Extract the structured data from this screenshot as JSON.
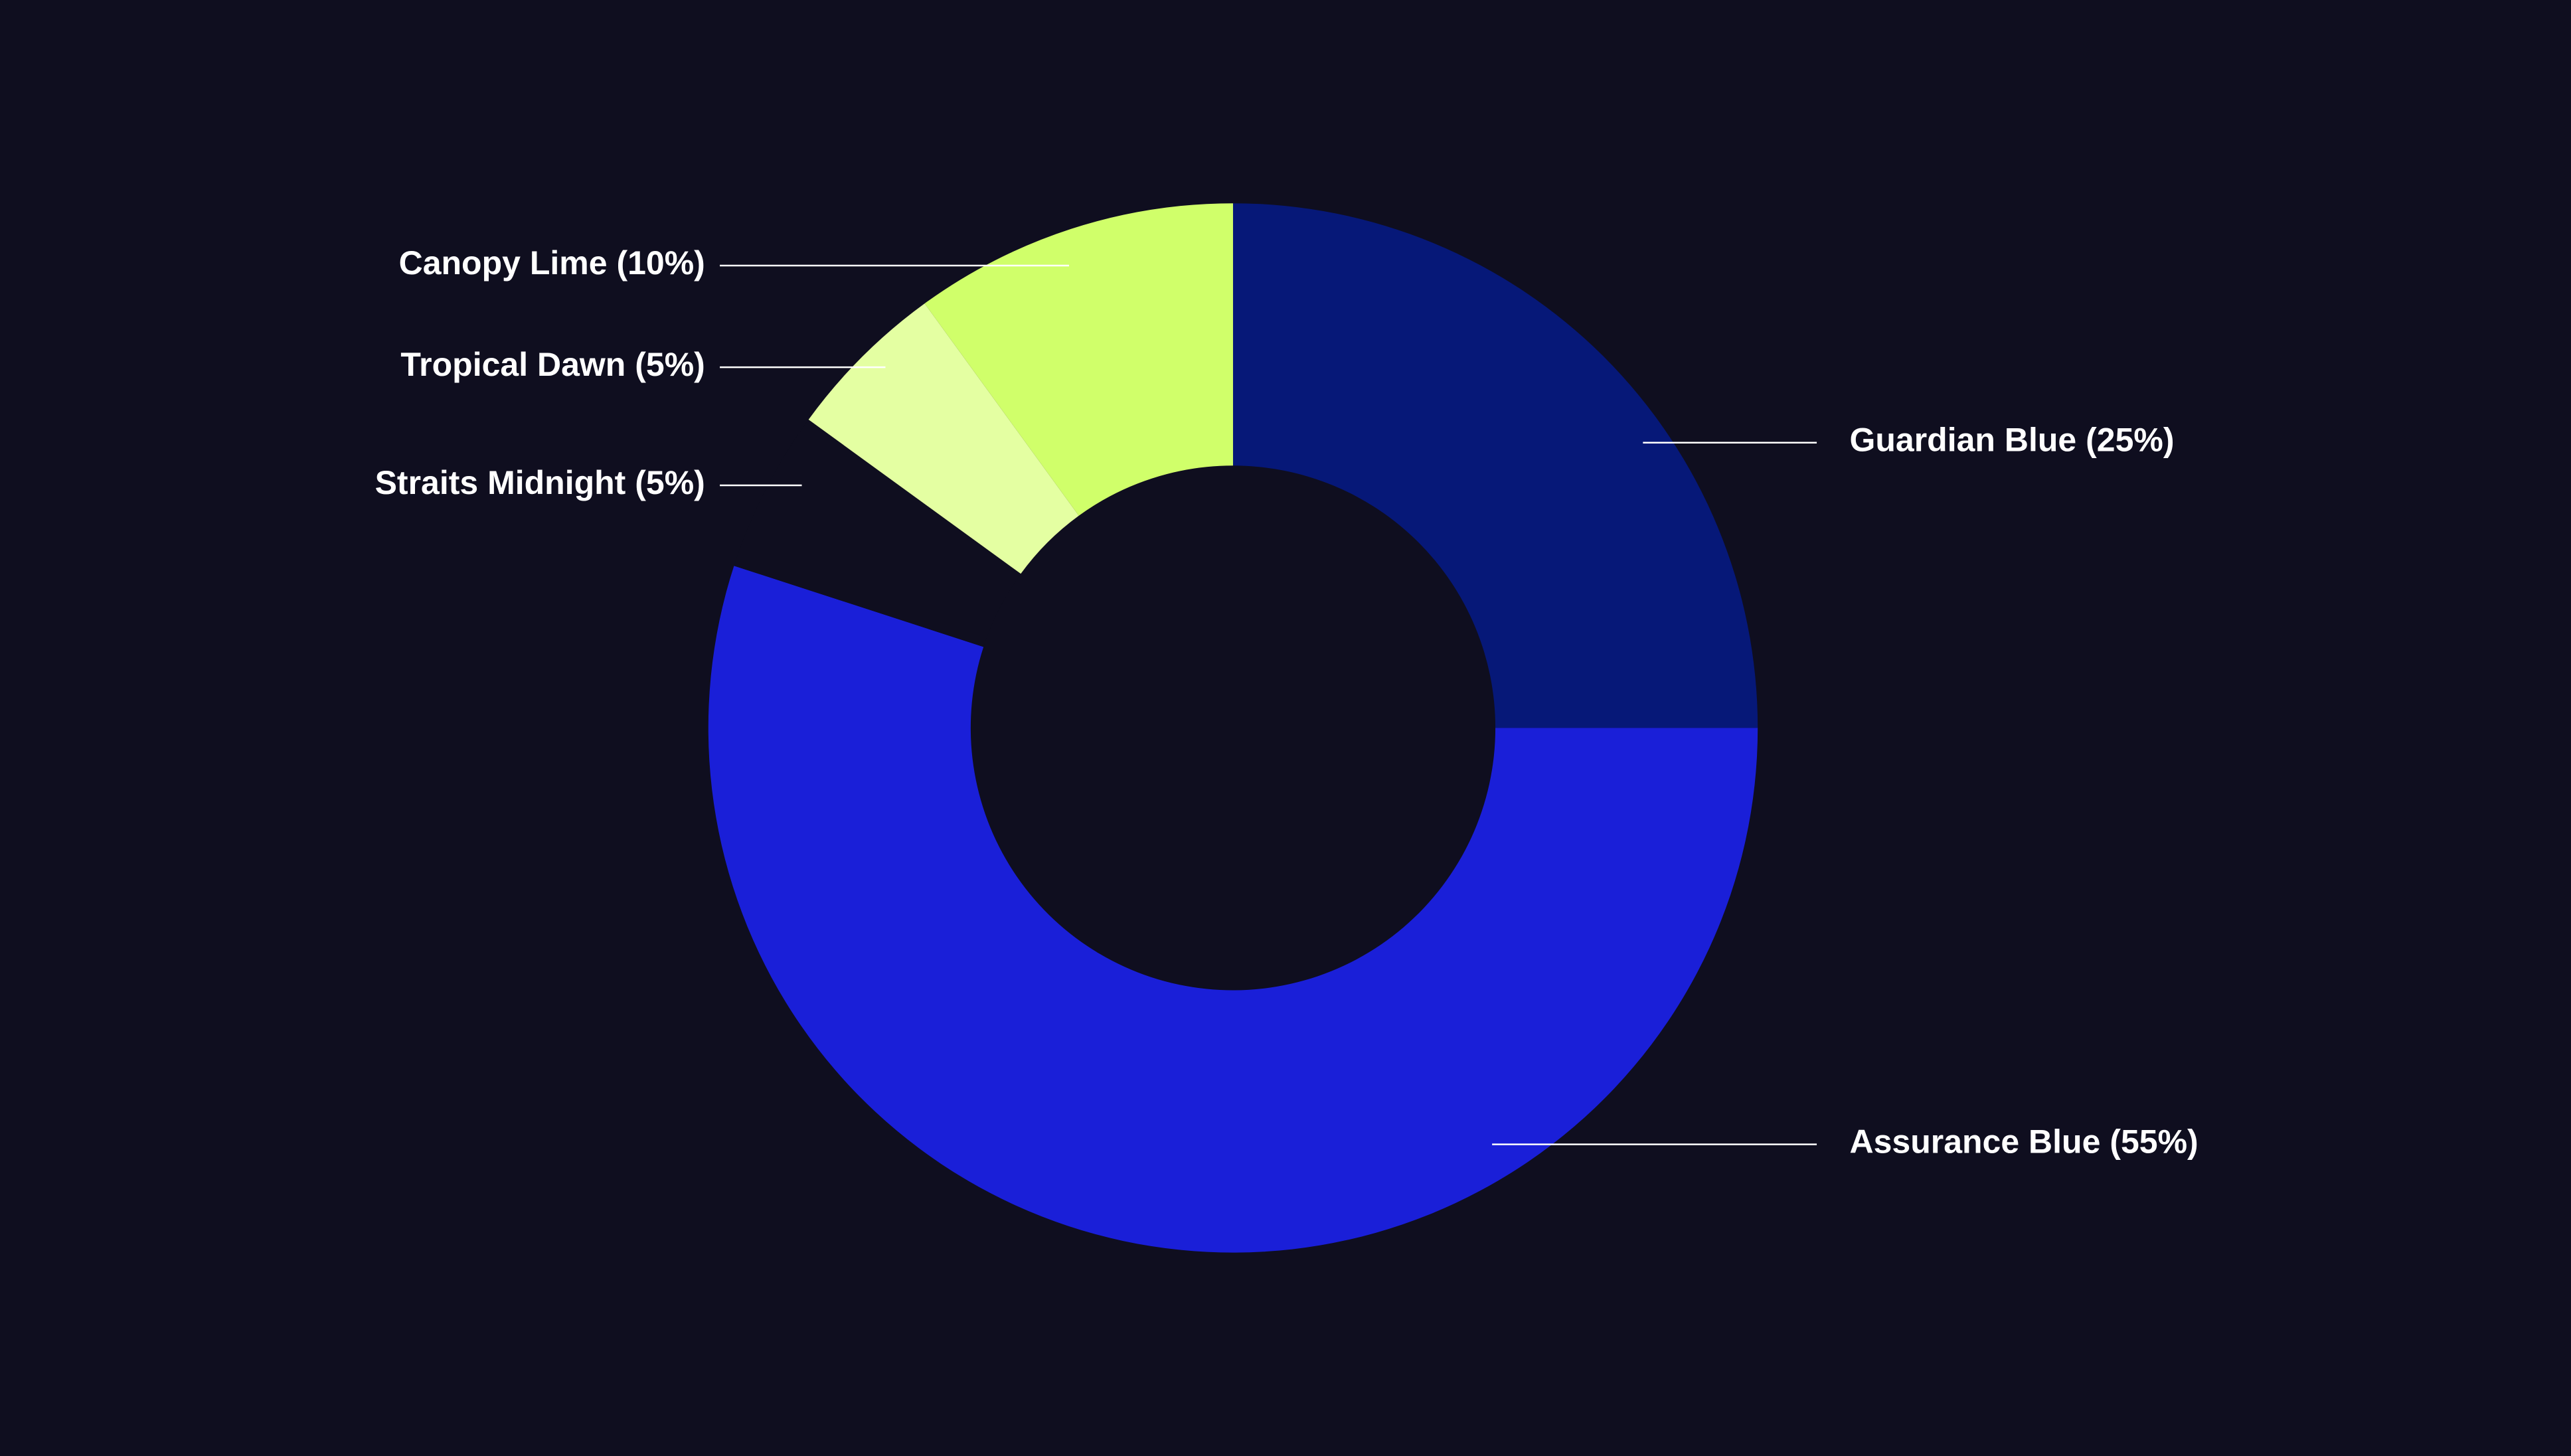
{
  "chart_data": {
    "type": "donut",
    "categories": [
      "Guardian Blue",
      "Assurance Blue",
      "Straits Midnight",
      "Tropical Dawn",
      "Canopy Lime"
    ],
    "values": [
      25,
      55,
      5,
      5,
      10
    ],
    "value_labels": [
      "(25%)",
      "(55%)",
      "(5%)",
      "(5%)",
      "(10%)"
    ],
    "colors": [
      "#061878",
      "#1a1fd8",
      "#0f0e1f",
      "#e4ffa2",
      "#d0ff6a"
    ]
  }
}
